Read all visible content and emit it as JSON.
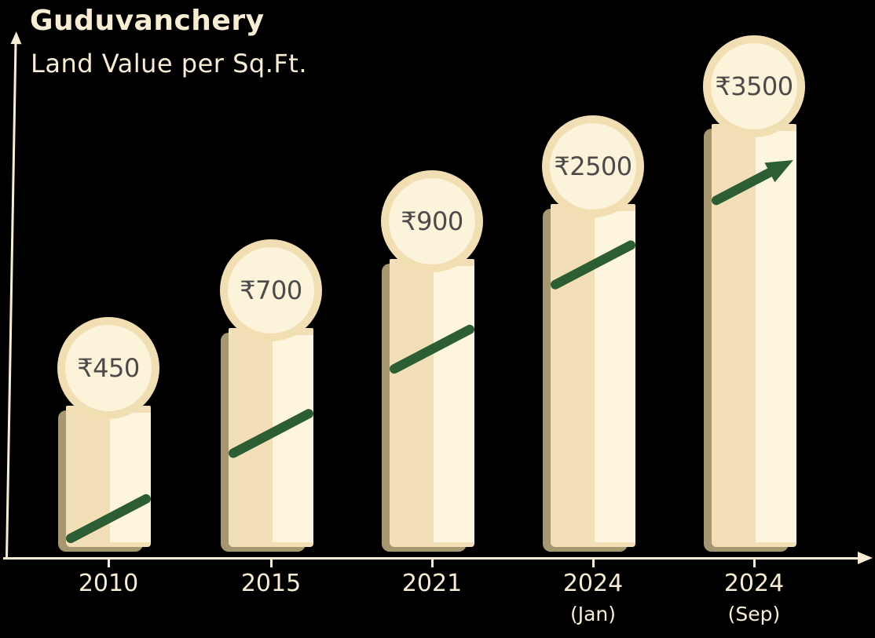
{
  "chart_data": {
    "type": "bar",
    "title": "Guduvanchery",
    "subtitle": "Land Value per Sq.Ft.",
    "currency": "₹",
    "categories": [
      "2010",
      "2015",
      "2021",
      "2024 (Jan)",
      "2024 (Sep)"
    ],
    "category_lines": [
      [
        "2010",
        ""
      ],
      [
        "2015",
        ""
      ],
      [
        "2021",
        ""
      ],
      [
        "2024",
        "(Jan)"
      ],
      [
        "2024",
        "(Sep)"
      ]
    ],
    "values": [
      450,
      700,
      900,
      2500,
      3500
    ],
    "value_labels": [
      "₹450",
      "₹700",
      "₹900",
      "₹2500",
      "₹3500"
    ],
    "xlabel": "",
    "ylabel": "",
    "legend": "none",
    "gridlines": false,
    "axes": {
      "y_arrow": true,
      "x_arrow": true
    },
    "trend_arrow": true,
    "colors": {
      "background": "#000000",
      "cream": "#f8edd3",
      "bar_fill": "#f3dfb7",
      "bar_highlight": "#fdf5de",
      "bar_shadow": "#a5976f",
      "badge_ring": "#f2deb3",
      "badge_fill": "#fbf3da",
      "badge_text": "#4b4b49",
      "trend_green": "#2d5e33"
    }
  }
}
